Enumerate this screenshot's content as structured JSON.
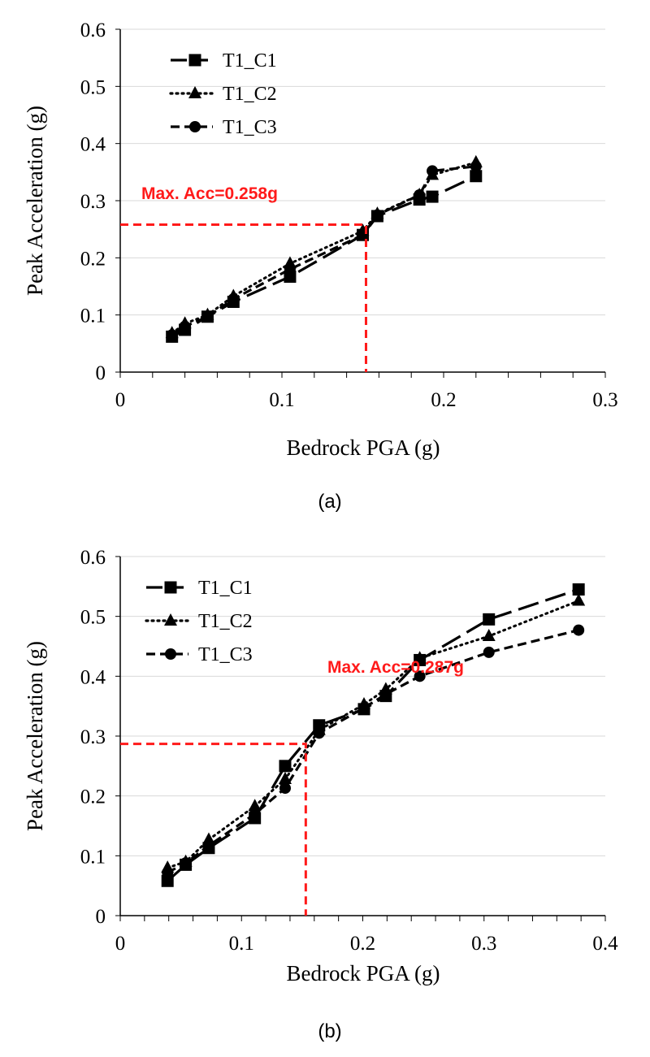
{
  "chart_data": [
    {
      "type": "line",
      "caption": "(a)",
      "xlabel": "Bedrock PGA (g)",
      "ylabel": "Peak Acceleration (g)",
      "xlim": [
        0,
        0.3
      ],
      "ylim": [
        0,
        0.6
      ],
      "xticks": [
        "0",
        "0.1",
        "0.2",
        "0.3"
      ],
      "yticks": [
        "0",
        "0.1",
        "0.2",
        "0.3",
        "0.4",
        "0.5",
        "0.6"
      ],
      "grid": "horizontal",
      "legend_position": "top-left",
      "series": [
        {
          "name": "T1_C1",
          "marker": "square",
          "dash": "long-dash",
          "x": [
            0.032,
            0.04,
            0.054,
            0.07,
            0.105,
            0.15,
            0.159,
            0.185,
            0.193,
            0.22
          ],
          "y": [
            0.062,
            0.074,
            0.097,
            0.123,
            0.167,
            0.24,
            0.273,
            0.302,
            0.307,
            0.343
          ]
        },
        {
          "name": "T1_C2",
          "marker": "triangle",
          "dash": "dotted",
          "x": [
            0.032,
            0.04,
            0.054,
            0.07,
            0.105,
            0.15,
            0.159,
            0.185,
            0.193,
            0.22
          ],
          "y": [
            0.068,
            0.085,
            0.1,
            0.133,
            0.19,
            0.247,
            0.277,
            0.31,
            0.345,
            0.367
          ]
        },
        {
          "name": "T1_C3",
          "marker": "circle",
          "dash": "dashed",
          "x": [
            0.032,
            0.04,
            0.054,
            0.07,
            0.105,
            0.15,
            0.159,
            0.185,
            0.193,
            0.22
          ],
          "y": [
            0.065,
            0.08,
            0.097,
            0.128,
            0.18,
            0.24,
            0.275,
            0.31,
            0.352,
            0.36
          ]
        }
      ],
      "annotation": {
        "text": "Max. Acc=0.258g",
        "x": 0.152,
        "y": 0.258
      }
    },
    {
      "type": "line",
      "caption": "(b)",
      "xlabel": "Bedrock PGA (g)",
      "ylabel": "Peak Acceleration (g)",
      "xlim": [
        0,
        0.4
      ],
      "ylim": [
        0,
        0.6
      ],
      "xticks": [
        "0",
        "0.1",
        "0.2",
        "0.3",
        "0.4"
      ],
      "yticks": [
        "0",
        "0.1",
        "0.2",
        "0.3",
        "0.4",
        "0.5",
        "0.6"
      ],
      "grid": "horizontal",
      "legend_position": "top-left",
      "series": [
        {
          "name": "T1_C1",
          "marker": "square",
          "dash": "long-dash",
          "x": [
            0.039,
            0.054,
            0.073,
            0.111,
            0.136,
            0.164,
            0.201,
            0.219,
            0.247,
            0.304,
            0.378
          ],
          "y": [
            0.058,
            0.085,
            0.113,
            0.163,
            0.25,
            0.318,
            0.345,
            0.367,
            0.427,
            0.495,
            0.545
          ]
        },
        {
          "name": "T1_C2",
          "marker": "triangle",
          "dash": "dotted",
          "x": [
            0.039,
            0.054,
            0.073,
            0.111,
            0.136,
            0.164,
            0.201,
            0.219,
            0.247,
            0.304,
            0.378
          ],
          "y": [
            0.08,
            0.09,
            0.127,
            0.183,
            0.228,
            0.31,
            0.353,
            0.378,
            0.43,
            0.467,
            0.526
          ]
        },
        {
          "name": "T1_C3",
          "marker": "circle",
          "dash": "dashed",
          "x": [
            0.039,
            0.054,
            0.073,
            0.111,
            0.136,
            0.164,
            0.201,
            0.219,
            0.247,
            0.304,
            0.378
          ],
          "y": [
            0.072,
            0.088,
            0.117,
            0.17,
            0.213,
            0.305,
            0.347,
            0.37,
            0.4,
            0.44,
            0.477
          ]
        }
      ],
      "annotation": {
        "text": "Max. Acc=0.287g",
        "x": 0.153,
        "y": 0.287
      }
    }
  ],
  "colors": {
    "series": "#000000",
    "annotation": "#ff1a1a",
    "grid": "#d9d9d9"
  }
}
